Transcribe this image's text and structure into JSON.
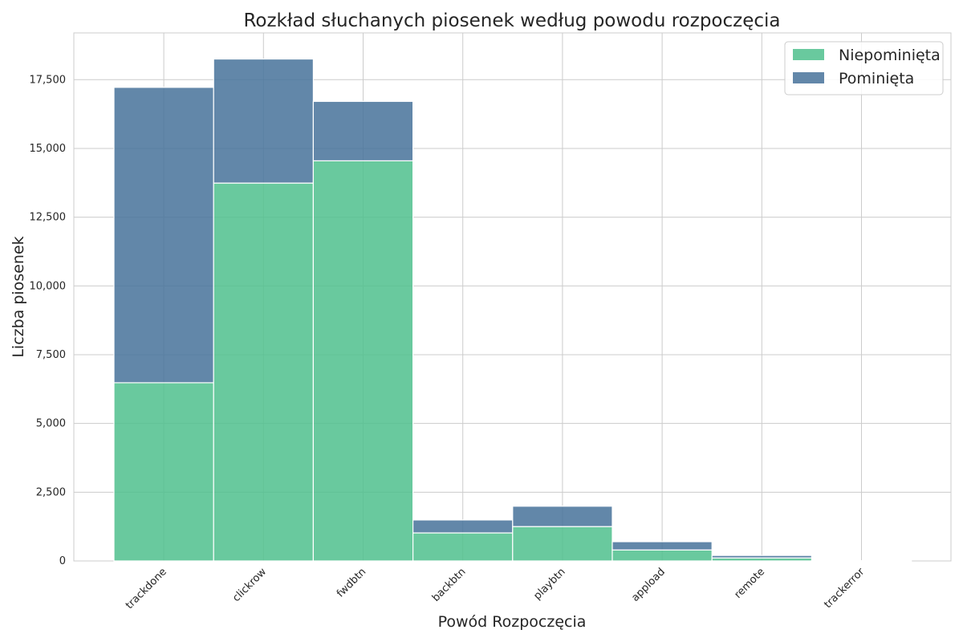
{
  "chart_data": {
    "type": "bar",
    "stacked": true,
    "title": "Rozkład słuchanych piosenek według powodu rozpoczęcia",
    "xlabel": "Powód Rozpoczęcia",
    "ylabel": "Liczba piosenek",
    "categories": [
      "trackdone",
      "clickrow",
      "fwdbtn",
      "backbtn",
      "playbtn",
      "appload",
      "remote",
      "trackerror"
    ],
    "series": [
      {
        "name": "Niepominięta",
        "color": "#4fc08d",
        "values": [
          6480,
          13740,
          14550,
          1020,
          1250,
          400,
          110,
          5
        ]
      },
      {
        "name": "Pominięta",
        "color": "#46729a",
        "values": [
          10740,
          4510,
          2160,
          470,
          740,
          300,
          90,
          5
        ]
      }
    ],
    "ylim": [
      0,
      19200
    ],
    "yticks": [
      0,
      2500,
      5000,
      7500,
      10000,
      12500,
      15000,
      17500
    ],
    "ytick_labels": [
      "0",
      "2,500",
      "5,000",
      "7,500",
      "10,000",
      "12,500",
      "15,000",
      "17,500"
    ],
    "grid": true,
    "legend_position": "top-right"
  }
}
